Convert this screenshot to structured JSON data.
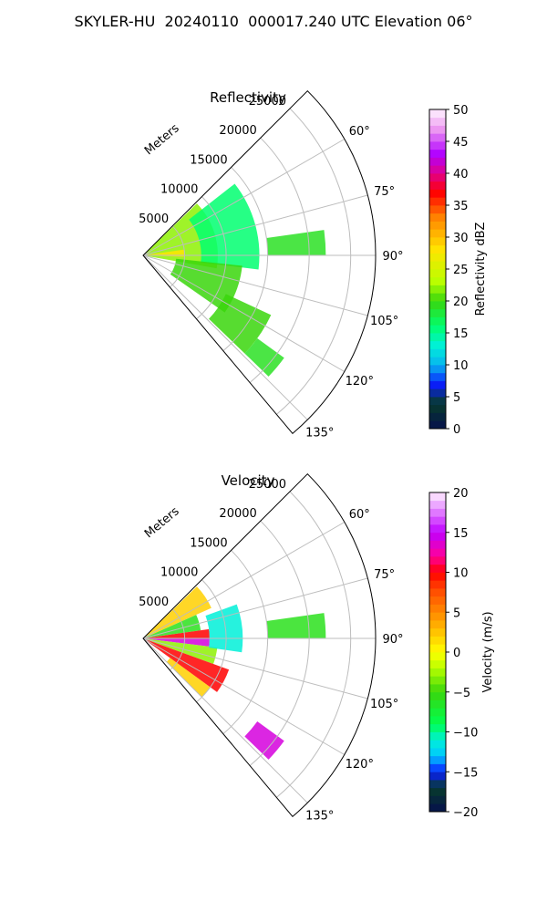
{
  "title": "SKYLER-HU  20240110  000017.240 UTC Elevation 06°",
  "chart_data": [
    {
      "type": "polar-sector-heatmap",
      "title": "Reflectivity",
      "radial_axis": {
        "label": "Meters",
        "ticks": [
          5000,
          10000,
          15000,
          20000,
          25000
        ],
        "tick_labels": [
          "5000",
          "10000",
          "15000",
          "20000",
          "25000"
        ],
        "range": [
          0,
          28000
        ]
      },
      "azimuth_axis": {
        "ticks": [
          60,
          75,
          90,
          105,
          120,
          135
        ],
        "tick_labels": [
          "60°",
          "75°",
          "90°",
          "105°",
          "120°",
          "135°"
        ],
        "range": [
          45,
          140
        ]
      },
      "colorbar": {
        "label": "Reflectivity dBZ",
        "range": [
          0,
          50
        ],
        "ticks": [
          0,
          5,
          10,
          15,
          20,
          25,
          30,
          35,
          40,
          45,
          50
        ],
        "tick_labels": [
          "0",
          "5",
          "10",
          "15",
          "20",
          "25",
          "30",
          "35",
          "40",
          "45",
          "50"
        ],
        "scale": "pyart_nwsref"
      },
      "echo_regions": [
        {
          "az": [
            46,
            100
          ],
          "r": [
            0,
            9000
          ],
          "value": 22
        },
        {
          "az": [
            82,
            92
          ],
          "r": [
            0,
            5000
          ],
          "value": 28
        },
        {
          "az": [
            52,
            97
          ],
          "r": [
            7000,
            14000
          ],
          "value": 16
        },
        {
          "az": [
            96,
            125
          ],
          "r": [
            4000,
            12000
          ],
          "value": 20
        },
        {
          "az": [
            115,
            134
          ],
          "r": [
            11000,
            17000
          ],
          "value": 20
        },
        {
          "az": [
            82,
            90
          ],
          "r": [
            15000,
            22000
          ],
          "value": 19
        },
        {
          "az": [
            126,
            134
          ],
          "r": [
            17000,
            21000
          ],
          "value": 19
        }
      ]
    },
    {
      "type": "polar-sector-heatmap",
      "title": "Velocity",
      "radial_axis": {
        "label": "Meters",
        "ticks": [
          5000,
          10000,
          15000,
          20000,
          25000
        ],
        "tick_labels": [
          "5000",
          "10000",
          "15000",
          "20000",
          "25000"
        ],
        "range": [
          0,
          28000
        ]
      },
      "azimuth_axis": {
        "ticks": [
          60,
          75,
          90,
          105,
          120,
          135
        ],
        "tick_labels": [
          "60°",
          "75°",
          "90°",
          "105°",
          "120°",
          "135°"
        ],
        "range": [
          45,
          140
        ]
      },
      "colorbar": {
        "label": "Velocity (m/s)",
        "range": [
          -20,
          20
        ],
        "ticks": [
          -20,
          -15,
          -10,
          -5,
          0,
          5,
          10,
          15,
          20
        ],
        "tick_labels": [
          "−20",
          "−15",
          "−10",
          "−5",
          "0",
          "5",
          "10",
          "15",
          "20"
        ],
        "scale": "pyart_balance"
      },
      "echo_regions": [
        {
          "az": [
            46,
            66
          ],
          "r": [
            0,
            9000
          ],
          "value": 2
        },
        {
          "az": [
            66,
            82
          ],
          "r": [
            0,
            7000
          ],
          "value": -6
        },
        {
          "az": [
            82,
            90
          ],
          "r": [
            0,
            8000
          ],
          "value": 10
        },
        {
          "az": [
            90,
            97
          ],
          "r": [
            0,
            8000
          ],
          "value": 14
        },
        {
          "az": [
            97,
            110
          ],
          "r": [
            0,
            9000
          ],
          "value": -3
        },
        {
          "az": [
            110,
            126
          ],
          "r": [
            0,
            11000
          ],
          "value": 10
        },
        {
          "az": [
            126,
            135
          ],
          "r": [
            4000,
            10000
          ],
          "value": 2
        },
        {
          "az": [
            70,
            98
          ],
          "r": [
            8000,
            12000
          ],
          "value": -11
        },
        {
          "az": [
            82,
            90
          ],
          "r": [
            15000,
            22000
          ],
          "value": -6
        },
        {
          "az": [
            126,
            134
          ],
          "r": [
            17000,
            21000
          ],
          "value": 14
        }
      ]
    }
  ]
}
